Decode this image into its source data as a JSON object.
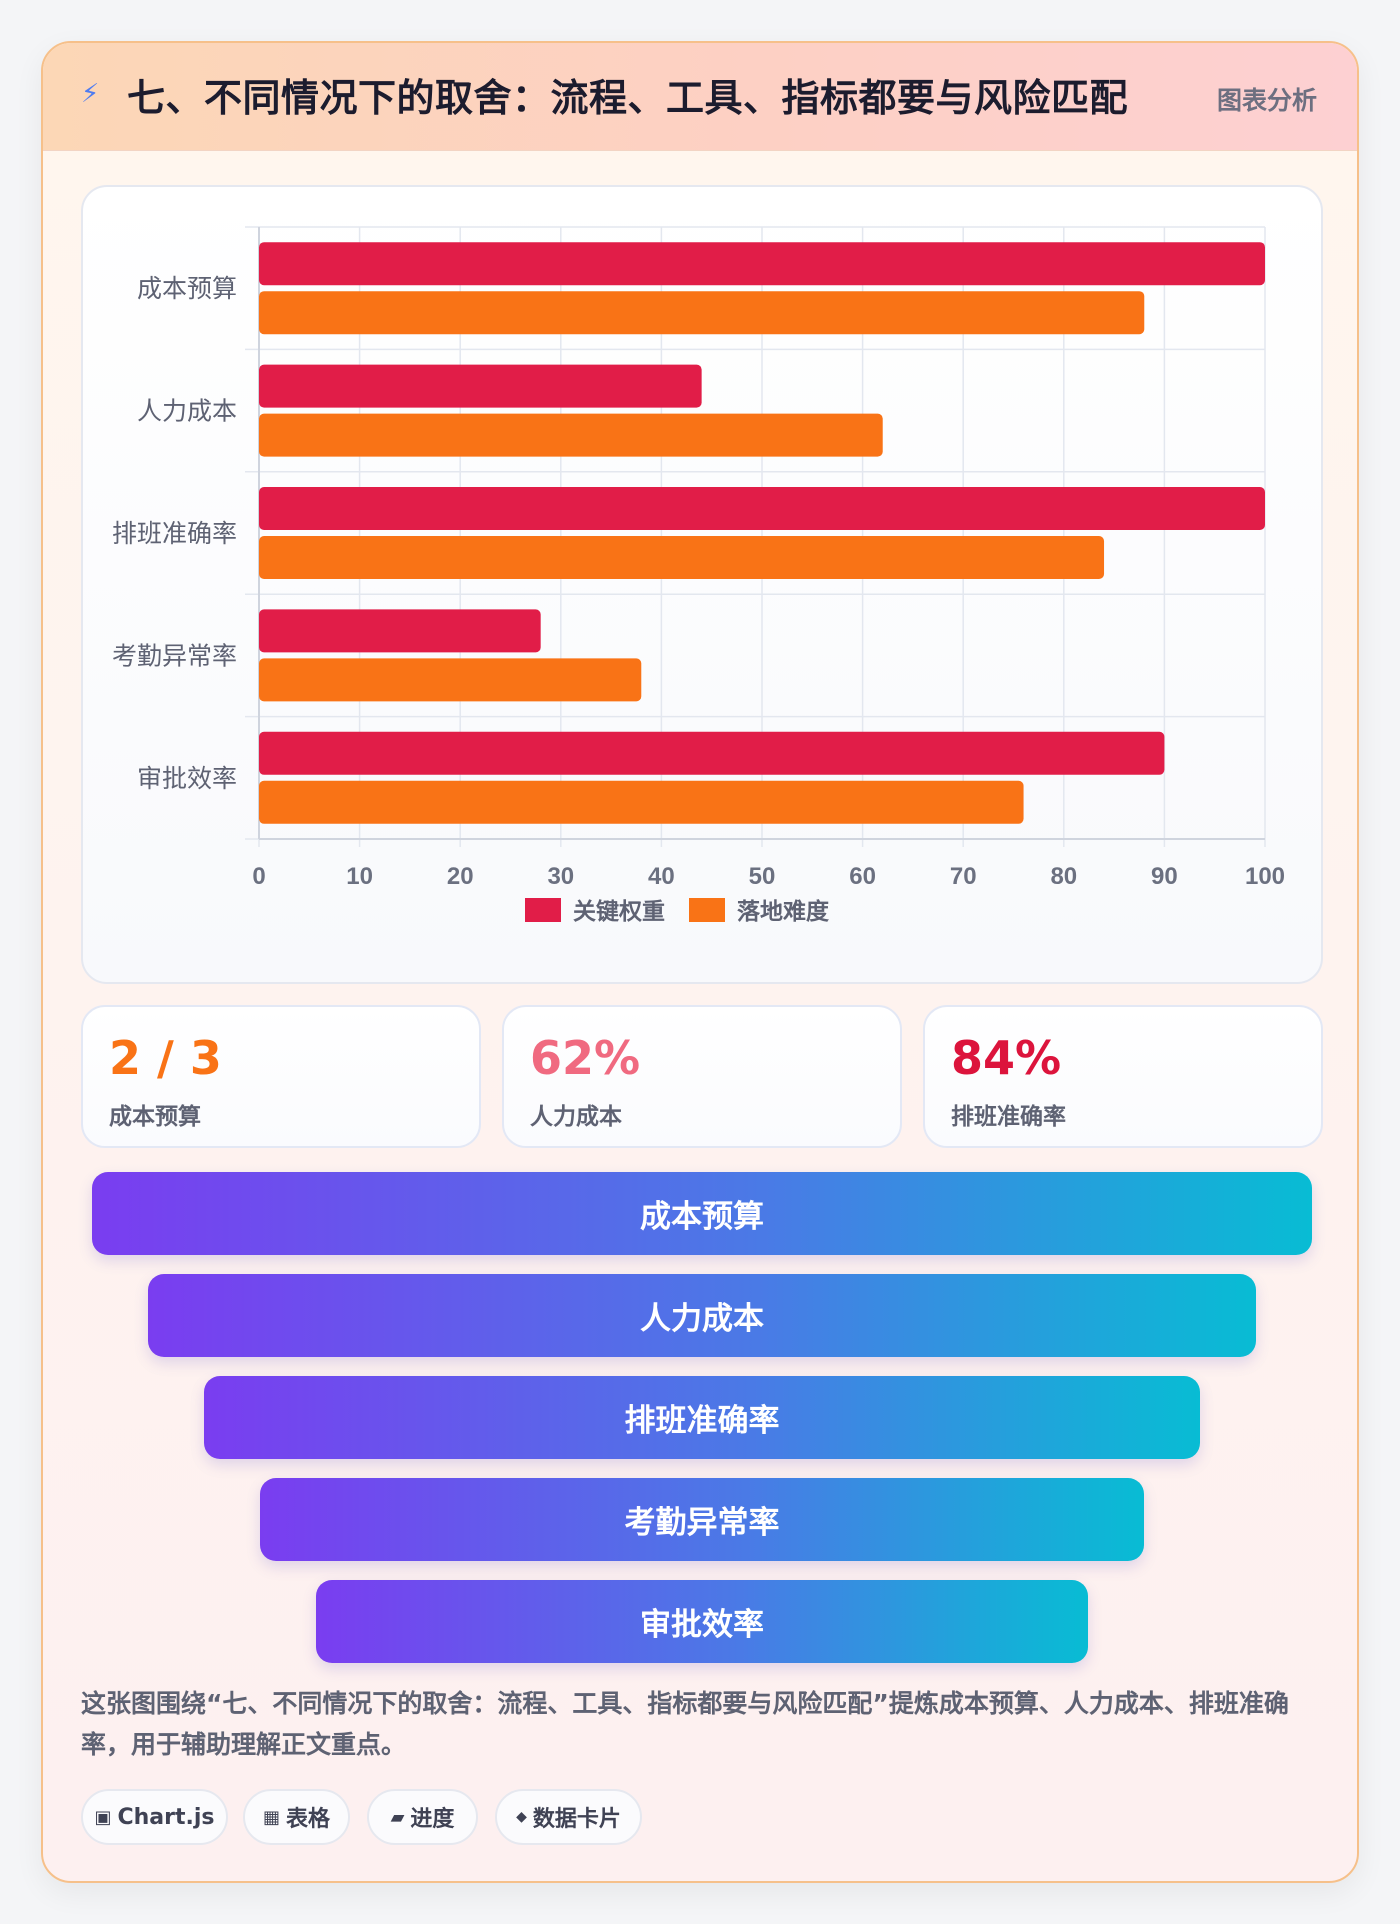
{
  "header": {
    "icon": "lightning-icon",
    "title": "七、不同情况下的取舍：流程、工具、指标都要与风险匹配",
    "tag": "图表分析"
  },
  "chart_data": {
    "type": "bar",
    "orientation": "horizontal",
    "categories": [
      "成本预算",
      "人力成本",
      "排班准确率",
      "考勤异常率",
      "审批效率"
    ],
    "series": [
      {
        "name": "关键权重",
        "color": "#e11d48",
        "values": [
          100,
          44,
          100,
          28,
          90
        ]
      },
      {
        "name": "落地难度",
        "color": "#f97316",
        "values": [
          88,
          62,
          84,
          38,
          76
        ]
      }
    ],
    "xlim": [
      0,
      100
    ],
    "xticks": [
      0,
      10,
      20,
      30,
      40,
      50,
      60,
      70,
      80,
      90,
      100
    ],
    "grid": true,
    "legend_position": "bottom"
  },
  "kpis": [
    {
      "value": "2 / 3",
      "label": "成本预算",
      "color": "#f97316"
    },
    {
      "value": "62%",
      "label": "人力成本",
      "color": "#f06a80"
    },
    {
      "value": "84%",
      "label": "排班准确率",
      "color": "#dc143c"
    }
  ],
  "funnel": [
    "成本预算",
    "人力成本",
    "排班准确率",
    "考勤异常率",
    "审批效率"
  ],
  "caption": "这张图围绕“七、不同情况下的取舍：流程、工具、指标都要与风险匹配”提炼成本预算、人力成本、排班准确率，用于辅助理解正文重点。",
  "chips": [
    {
      "icon": "▣",
      "label": "Chart.js"
    },
    {
      "icon": "▦",
      "label": "表格"
    },
    {
      "icon": "▰",
      "label": "进度"
    },
    {
      "icon": "◆",
      "label": "数据卡片"
    }
  ]
}
